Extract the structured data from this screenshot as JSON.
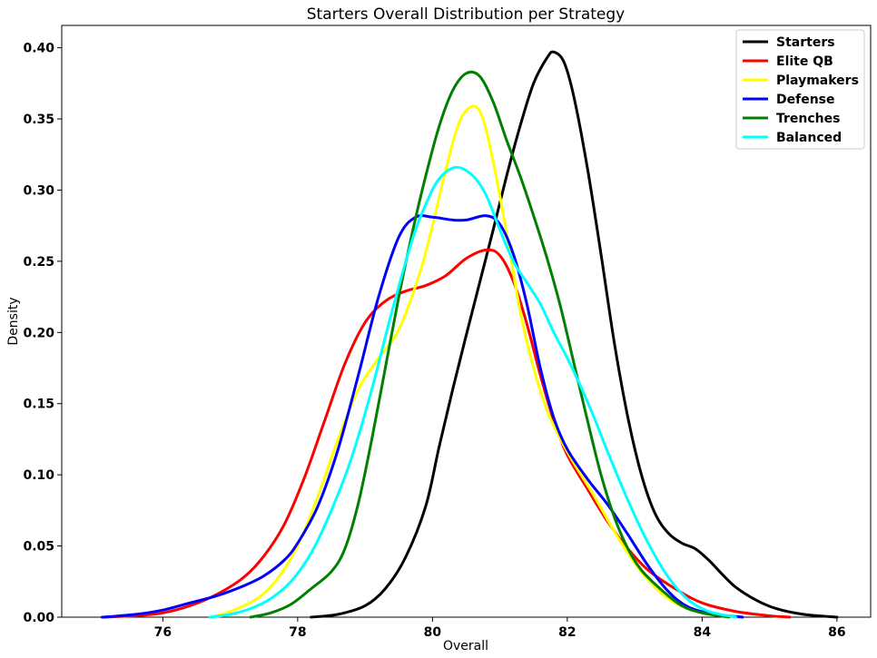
{
  "chart_data": {
    "type": "line",
    "title": "Starters Overall Distribution per Strategy",
    "xlabel": "Overall",
    "ylabel": "Density",
    "xlim": [
      74.5,
      86.5
    ],
    "ylim": [
      0.0,
      0.4157
    ],
    "xticks": [
      76,
      78,
      80,
      82,
      84,
      86
    ],
    "yticks": [
      0.0,
      0.05,
      0.1,
      0.15,
      0.2,
      0.25,
      0.3,
      0.35,
      0.4
    ],
    "xtick_labels": [
      "76",
      "78",
      "80",
      "82",
      "84",
      "86"
    ],
    "ytick_labels": [
      "0.00",
      "0.05",
      "0.10",
      "0.15",
      "0.20",
      "0.25",
      "0.30",
      "0.35",
      "0.40"
    ],
    "grid": false,
    "legend": "top-right",
    "series": [
      {
        "name": "Starters",
        "color": "#000000",
        "points": [
          [
            78.2,
            0.0
          ],
          [
            78.6,
            0.002
          ],
          [
            79.0,
            0.008
          ],
          [
            79.3,
            0.02
          ],
          [
            79.6,
            0.042
          ],
          [
            79.9,
            0.078
          ],
          [
            80.1,
            0.12
          ],
          [
            80.3,
            0.16
          ],
          [
            80.5,
            0.198
          ],
          [
            80.7,
            0.235
          ],
          [
            80.9,
            0.272
          ],
          [
            81.1,
            0.31
          ],
          [
            81.3,
            0.345
          ],
          [
            81.5,
            0.375
          ],
          [
            81.7,
            0.393
          ],
          [
            81.8,
            0.397
          ],
          [
            81.95,
            0.39
          ],
          [
            82.1,
            0.365
          ],
          [
            82.3,
            0.315
          ],
          [
            82.5,
            0.255
          ],
          [
            82.7,
            0.192
          ],
          [
            82.9,
            0.14
          ],
          [
            83.1,
            0.1
          ],
          [
            83.3,
            0.073
          ],
          [
            83.5,
            0.059
          ],
          [
            83.7,
            0.052
          ],
          [
            83.9,
            0.048
          ],
          [
            84.1,
            0.04
          ],
          [
            84.3,
            0.03
          ],
          [
            84.5,
            0.021
          ],
          [
            84.8,
            0.012
          ],
          [
            85.1,
            0.006
          ],
          [
            85.5,
            0.002
          ],
          [
            86.0,
            0.0
          ]
        ]
      },
      {
        "name": "Elite QB",
        "color": "#ff0000",
        "points": [
          [
            75.1,
            0.0
          ],
          [
            75.6,
            0.001
          ],
          [
            76.0,
            0.003
          ],
          [
            76.4,
            0.008
          ],
          [
            76.8,
            0.016
          ],
          [
            77.2,
            0.028
          ],
          [
            77.5,
            0.043
          ],
          [
            77.8,
            0.065
          ],
          [
            78.1,
            0.098
          ],
          [
            78.4,
            0.138
          ],
          [
            78.7,
            0.178
          ],
          [
            79.0,
            0.207
          ],
          [
            79.3,
            0.222
          ],
          [
            79.6,
            0.229
          ],
          [
            79.9,
            0.233
          ],
          [
            80.2,
            0.24
          ],
          [
            80.5,
            0.252
          ],
          [
            80.8,
            0.258
          ],
          [
            81.0,
            0.254
          ],
          [
            81.2,
            0.236
          ],
          [
            81.4,
            0.206
          ],
          [
            81.6,
            0.17
          ],
          [
            81.8,
            0.138
          ],
          [
            82.0,
            0.114
          ],
          [
            82.3,
            0.09
          ],
          [
            82.6,
            0.067
          ],
          [
            82.9,
            0.048
          ],
          [
            83.2,
            0.033
          ],
          [
            83.6,
            0.02
          ],
          [
            84.0,
            0.01
          ],
          [
            84.5,
            0.004
          ],
          [
            85.0,
            0.001
          ],
          [
            85.3,
            0.0
          ]
        ]
      },
      {
        "name": "Playmakers",
        "color": "#ffff00",
        "points": [
          [
            76.7,
            0.0
          ],
          [
            77.0,
            0.004
          ],
          [
            77.4,
            0.013
          ],
          [
            77.7,
            0.027
          ],
          [
            78.0,
            0.05
          ],
          [
            78.3,
            0.085
          ],
          [
            78.6,
            0.125
          ],
          [
            78.9,
            0.16
          ],
          [
            79.2,
            0.182
          ],
          [
            79.5,
            0.202
          ],
          [
            79.8,
            0.24
          ],
          [
            80.0,
            0.275
          ],
          [
            80.2,
            0.315
          ],
          [
            80.4,
            0.348
          ],
          [
            80.6,
            0.359
          ],
          [
            80.75,
            0.35
          ],
          [
            80.9,
            0.32
          ],
          [
            81.1,
            0.27
          ],
          [
            81.3,
            0.215
          ],
          [
            81.5,
            0.175
          ],
          [
            81.7,
            0.145
          ],
          [
            81.9,
            0.125
          ],
          [
            82.1,
            0.108
          ],
          [
            82.4,
            0.085
          ],
          [
            82.7,
            0.06
          ],
          [
            83.0,
            0.038
          ],
          [
            83.3,
            0.021
          ],
          [
            83.6,
            0.01
          ],
          [
            84.0,
            0.003
          ],
          [
            84.5,
            0.0
          ]
        ]
      },
      {
        "name": "Defense",
        "color": "#0000ff",
        "points": [
          [
            75.1,
            0.0
          ],
          [
            75.6,
            0.002
          ],
          [
            76.0,
            0.005
          ],
          [
            76.4,
            0.01
          ],
          [
            76.8,
            0.015
          ],
          [
            77.2,
            0.022
          ],
          [
            77.5,
            0.029
          ],
          [
            77.8,
            0.04
          ],
          [
            78.0,
            0.052
          ],
          [
            78.3,
            0.078
          ],
          [
            78.6,
            0.118
          ],
          [
            78.9,
            0.17
          ],
          [
            79.2,
            0.225
          ],
          [
            79.5,
            0.267
          ],
          [
            79.75,
            0.281
          ],
          [
            80.0,
            0.281
          ],
          [
            80.3,
            0.279
          ],
          [
            80.5,
            0.279
          ],
          [
            80.8,
            0.282
          ],
          [
            81.0,
            0.276
          ],
          [
            81.2,
            0.255
          ],
          [
            81.4,
            0.22
          ],
          [
            81.6,
            0.175
          ],
          [
            81.8,
            0.14
          ],
          [
            82.0,
            0.118
          ],
          [
            82.3,
            0.097
          ],
          [
            82.6,
            0.079
          ],
          [
            82.9,
            0.058
          ],
          [
            83.2,
            0.036
          ],
          [
            83.5,
            0.018
          ],
          [
            83.8,
            0.007
          ],
          [
            84.2,
            0.002
          ],
          [
            84.6,
            0.0
          ]
        ]
      },
      {
        "name": "Trenches",
        "color": "#008000",
        "points": [
          [
            77.3,
            0.0
          ],
          [
            77.6,
            0.003
          ],
          [
            77.9,
            0.009
          ],
          [
            78.2,
            0.02
          ],
          [
            78.5,
            0.032
          ],
          [
            78.7,
            0.048
          ],
          [
            78.9,
            0.08
          ],
          [
            79.1,
            0.125
          ],
          [
            79.3,
            0.175
          ],
          [
            79.5,
            0.225
          ],
          [
            79.7,
            0.27
          ],
          [
            79.9,
            0.31
          ],
          [
            80.1,
            0.345
          ],
          [
            80.3,
            0.37
          ],
          [
            80.5,
            0.382
          ],
          [
            80.7,
            0.38
          ],
          [
            80.9,
            0.362
          ],
          [
            81.1,
            0.335
          ],
          [
            81.3,
            0.31
          ],
          [
            81.5,
            0.282
          ],
          [
            81.7,
            0.252
          ],
          [
            81.9,
            0.218
          ],
          [
            82.1,
            0.178
          ],
          [
            82.3,
            0.138
          ],
          [
            82.5,
            0.1
          ],
          [
            82.7,
            0.07
          ],
          [
            82.9,
            0.048
          ],
          [
            83.1,
            0.033
          ],
          [
            83.4,
            0.019
          ],
          [
            83.7,
            0.008
          ],
          [
            84.0,
            0.003
          ],
          [
            84.4,
            0.0
          ]
        ]
      },
      {
        "name": "Balanced",
        "color": "#00ffff",
        "points": [
          [
            76.7,
            0.0
          ],
          [
            77.0,
            0.002
          ],
          [
            77.3,
            0.006
          ],
          [
            77.6,
            0.013
          ],
          [
            77.9,
            0.025
          ],
          [
            78.2,
            0.045
          ],
          [
            78.5,
            0.075
          ],
          [
            78.8,
            0.112
          ],
          [
            79.1,
            0.16
          ],
          [
            79.4,
            0.215
          ],
          [
            79.7,
            0.265
          ],
          [
            79.9,
            0.29
          ],
          [
            80.1,
            0.308
          ],
          [
            80.35,
            0.316
          ],
          [
            80.6,
            0.31
          ],
          [
            80.8,
            0.296
          ],
          [
            81.0,
            0.272
          ],
          [
            81.2,
            0.25
          ],
          [
            81.4,
            0.235
          ],
          [
            81.6,
            0.22
          ],
          [
            81.8,
            0.2
          ],
          [
            82.0,
            0.182
          ],
          [
            82.2,
            0.162
          ],
          [
            82.4,
            0.14
          ],
          [
            82.6,
            0.116
          ],
          [
            82.9,
            0.082
          ],
          [
            83.2,
            0.052
          ],
          [
            83.5,
            0.028
          ],
          [
            83.8,
            0.012
          ],
          [
            84.1,
            0.004
          ],
          [
            84.5,
            0.0
          ]
        ]
      }
    ]
  }
}
